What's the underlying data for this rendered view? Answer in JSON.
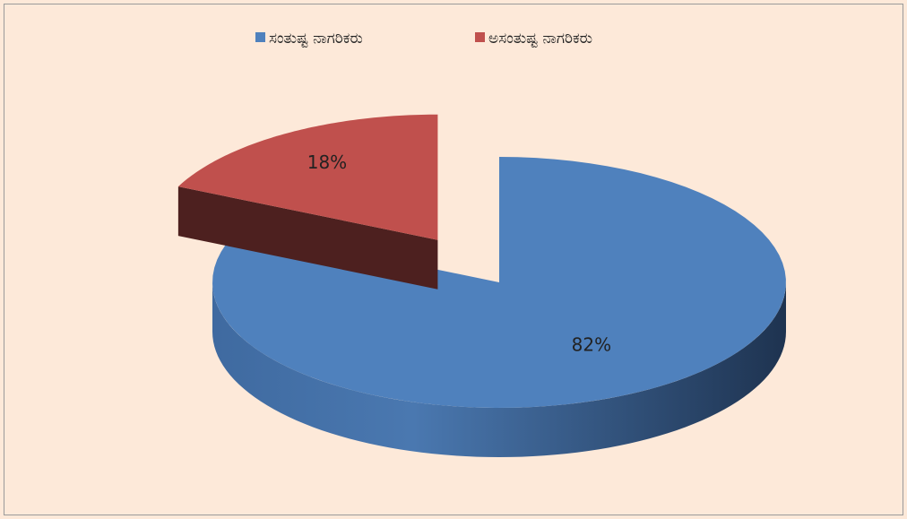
{
  "chart_data": {
    "type": "pie",
    "categories": [
      "ಸಂತುಷ್ಟ ನಾಗರಿಕರು",
      "ಅಸಂತುಷ್ಟ ನಾಗರಿಕರು"
    ],
    "values": [
      82,
      18
    ],
    "value_labels": [
      "82%",
      "18%"
    ],
    "colors": [
      "#4f81bd",
      "#c0504d"
    ],
    "legend": "top"
  }
}
